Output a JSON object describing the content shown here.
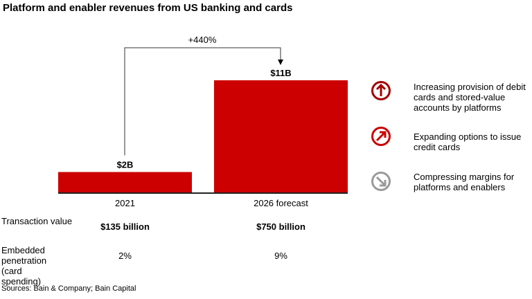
{
  "title": "Platform and enabler revenues from US banking and cards",
  "chart_data": {
    "type": "bar",
    "categories": [
      "2021",
      "2026 forecast"
    ],
    "values": [
      2,
      11
    ],
    "value_labels": [
      "$2B",
      "$11B"
    ],
    "unit": "$B",
    "ylim": [
      0,
      11
    ],
    "grid": false,
    "bar_color": "#cc0000",
    "annotation": {
      "label": "+440%",
      "from": "2021",
      "to": "2026 forecast"
    }
  },
  "table": {
    "rows": [
      {
        "label": "Transaction value",
        "values": [
          "$135 billion",
          "$750 billion"
        ],
        "bold": true
      },
      {
        "label": "Embedded penetration (card spending)",
        "values": [
          "2%",
          "9%"
        ],
        "bold": false
      }
    ]
  },
  "legend": [
    {
      "icon": "arrow-up-circle-icon",
      "color": "#a50000",
      "text": "Increasing provision of debit cards and stored-value accounts by platforms"
    },
    {
      "icon": "arrow-up-right-circle-icon",
      "color": "#cc0000",
      "text": "Expanding options to issue credit cards"
    },
    {
      "icon": "arrow-down-right-circle-icon",
      "color": "#9a9a9a",
      "text": "Compressing margins for platforms and enablers"
    }
  ],
  "source": "Sources: Bain & Company; Bain Capital"
}
